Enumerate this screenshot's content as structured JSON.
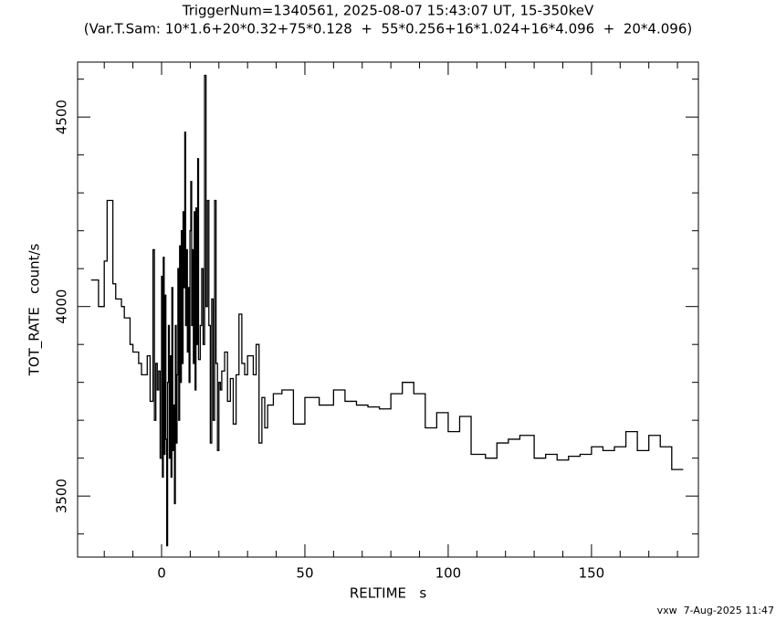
{
  "chart_data": {
    "type": "step",
    "title": "TriggerNum=1340561, 2025-08-07 15:43:07 UT, 15-350keV",
    "subtitle": "(Var.T.Sam: 10*1.6+20*0.32+75*0.128  +  55*0.256+16*1.024+16*4.096  +  20*4.096)",
    "x_label": "RELTIME   s",
    "y_label": "TOT_RATE   count/s",
    "footer": "vxw  7-Aug-2025 11:47",
    "color": "#000000",
    "xlim": [
      -29.3,
      187.3
    ],
    "ylim": [
      3339,
      4645
    ],
    "xticks": [
      0,
      50,
      100,
      150
    ],
    "yticks": [
      3500,
      4000,
      4500
    ],
    "x_minor_ticks": [
      -20,
      -10,
      10,
      20,
      30,
      40,
      60,
      70,
      80,
      90,
      110,
      120,
      130,
      140,
      160,
      170,
      180
    ],
    "y_minor_ticks": [
      3400,
      3600,
      3700,
      3800,
      3900,
      4100,
      4200,
      4300,
      4400,
      4600
    ],
    "x": [
      -24.6,
      -22,
      -20,
      -19,
      -17,
      -16,
      -14,
      -13,
      -11,
      -10,
      -8,
      -7,
      -5,
      -4,
      -3,
      -2.5,
      -2,
      -1.5,
      -1,
      -0.5,
      0,
      0.3,
      0.6,
      0.9,
      1.2,
      1.5,
      1.8,
      2.1,
      2.4,
      2.7,
      3.0,
      3.3,
      3.6,
      3.9,
      4.2,
      4.5,
      4.8,
      5.1,
      5.4,
      5.7,
      6.0,
      6.3,
      6.6,
      6.9,
      7.2,
      7.5,
      7.8,
      8.1,
      8.4,
      8.7,
      9.0,
      9.3,
      9.6,
      9.9,
      10.2,
      10.5,
      10.8,
      11.1,
      11.4,
      11.7,
      12.0,
      12.3,
      12.6,
      12.9,
      13.5,
      14,
      14.5,
      15,
      15.5,
      16,
      16.5,
      17,
      17.5,
      18,
      18.5,
      19,
      19.5,
      20,
      20.5,
      21,
      22,
      23,
      24,
      25,
      26,
      27,
      28,
      29,
      30,
      31,
      32,
      33,
      34,
      35,
      36,
      37,
      39,
      42,
      46,
      50,
      55,
      60,
      64,
      68,
      72,
      76,
      80,
      84,
      88,
      92,
      96,
      100,
      104,
      108,
      113,
      117,
      121,
      125,
      130,
      134,
      138,
      142,
      146,
      150,
      154,
      158,
      162,
      166,
      170,
      174,
      178,
      182
    ],
    "values": [
      4070,
      4000,
      4120,
      4280,
      4060,
      4020,
      4000,
      3970,
      3900,
      3880,
      3850,
      3820,
      3870,
      3750,
      4150,
      3700,
      3850,
      3780,
      3830,
      3600,
      4080,
      3550,
      4130,
      3610,
      4030,
      3650,
      3369,
      3800,
      3950,
      3600,
      3870,
      3550,
      4050,
      3620,
      3740,
      3480,
      3950,
      3640,
      3820,
      4100,
      3700,
      4160,
      3800,
      4200,
      3850,
      4250,
      4050,
      4460,
      3950,
      4150,
      3880,
      4050,
      3800,
      4200,
      4330,
      3950,
      4150,
      3850,
      4250,
      3780,
      4260,
      3900,
      4390,
      3860,
      3950,
      4100,
      3900,
      4610,
      4000,
      4280,
      3950,
      3640,
      4020,
      3700,
      4280,
      3850,
      3620,
      3800,
      3780,
      3830,
      3880,
      3750,
      3810,
      3690,
      3820,
      3980,
      3850,
      3820,
      3870,
      3870,
      3820,
      3900,
      3640,
      3760,
      3680,
      3740,
      3770,
      3780,
      3690,
      3760,
      3740,
      3780,
      3750,
      3740,
      3735,
      3730,
      3770,
      3800,
      3770,
      3680,
      3720,
      3670,
      3710,
      3610,
      3600,
      3640,
      3650,
      3660,
      3600,
      3610,
      3595,
      3605,
      3610,
      3630,
      3620,
      3630,
      3670,
      3620,
      3660,
      3630,
      3570,
      3570
    ]
  }
}
